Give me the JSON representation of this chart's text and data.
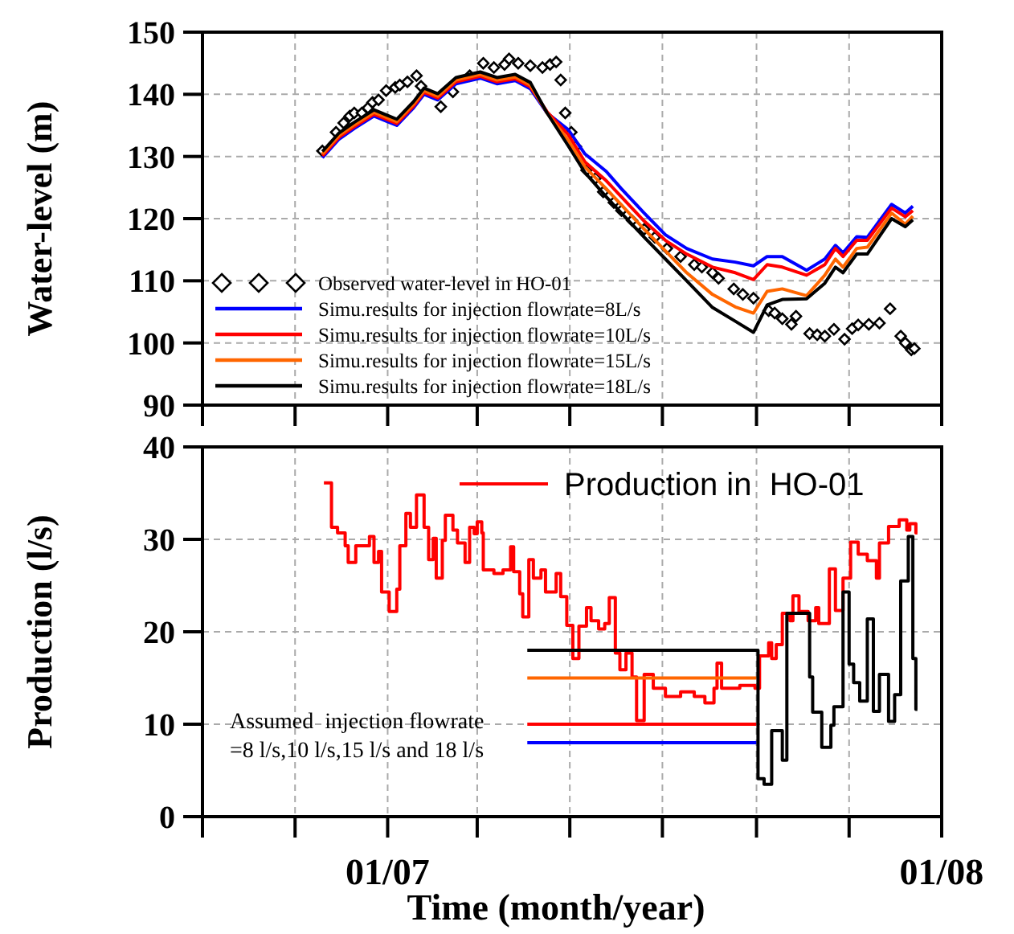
{
  "chart_data": [
    {
      "type": "line",
      "ylabel": "Water-level (m)",
      "xlim": [
        "2006-09-01",
        "2008-01-01"
      ],
      "xticks": [
        {
          "value": "2006-09-01",
          "label": null
        },
        {
          "value": "2006-11-01",
          "label": null
        },
        {
          "value": "2007-01-01",
          "label": null
        },
        {
          "value": "2007-03-01",
          "label": null
        },
        {
          "value": "2007-05-01",
          "label": null
        },
        {
          "value": "2007-07-01",
          "label": null
        },
        {
          "value": "2007-09-01",
          "label": null
        },
        {
          "value": "2007-11-01",
          "label": null
        },
        {
          "value": "2008-01-01",
          "label": null
        }
      ],
      "ylim": [
        90,
        150
      ],
      "yticks": [
        90,
        100,
        110,
        120,
        130,
        140,
        150
      ],
      "grid": true,
      "legend": "bottom left",
      "tick_labels": "y",
      "series": [
        {
          "name": "Observed water-level in HO-01",
          "type": "scatter",
          "marker": "diamond",
          "color": "#000000",
          "x": [
            "2006-11-19",
            "2006-11-28",
            "2006-12-03",
            "2006-12-07",
            "2006-12-10",
            "2006-12-15",
            "2006-12-19",
            "2006-12-22",
            "2006-12-26",
            "2006-12-31",
            "2007-01-06",
            "2007-01-09",
            "2007-01-14",
            "2007-01-20",
            "2007-01-23",
            "2007-02-05",
            "2007-02-13",
            "2007-02-24",
            "2007-03-05",
            "2007-03-12",
            "2007-03-19",
            "2007-03-22",
            "2007-03-28",
            "2007-04-05",
            "2007-04-13",
            "2007-04-18",
            "2007-04-22",
            "2007-04-25",
            "2007-04-28",
            "2007-05-02",
            "2007-05-05",
            "2007-05-12",
            "2007-05-18",
            "2007-05-23",
            "2007-05-30",
            "2007-06-04",
            "2007-06-11",
            "2007-06-19",
            "2007-06-26",
            "2007-07-04",
            "2007-07-13",
            "2007-07-22",
            "2007-07-27",
            "2007-08-03",
            "2007-08-07",
            "2007-08-17",
            "2007-08-23",
            "2007-08-30",
            "2007-09-09",
            "2007-09-13",
            "2007-09-18",
            "2007-09-24",
            "2007-09-27",
            "2007-10-06",
            "2007-10-11",
            "2007-10-16",
            "2007-10-22",
            "2007-10-29",
            "2007-11-03",
            "2007-11-07",
            "2007-11-14",
            "2007-11-21",
            "2007-11-28",
            "2007-12-05",
            "2007-12-08",
            "2007-12-12",
            "2007-12-14"
          ],
          "values": [
            130.9,
            133.9,
            135.4,
            136.5,
            137.0,
            137.0,
            137.8,
            138.7,
            139.1,
            140.6,
            141.1,
            141.5,
            142.0,
            143.0,
            141.3,
            138.0,
            140.4,
            143.0,
            145.0,
            144.3,
            144.8,
            145.7,
            145.0,
            144.6,
            144.3,
            144.8,
            145.2,
            142.3,
            137.0,
            133.9,
            131.6,
            127.8,
            126.5,
            124.3,
            122.6,
            121.3,
            119.7,
            118.3,
            117.0,
            115.2,
            113.9,
            112.6,
            112.2,
            111.3,
            110.4,
            108.7,
            107.8,
            107.2,
            105.2,
            104.8,
            103.9,
            103.0,
            104.3,
            101.5,
            101.3,
            101.1,
            102.2,
            100.6,
            102.3,
            102.9,
            103.0,
            103.2,
            105.5,
            101.1,
            100.0,
            98.9,
            99.1
          ]
        },
        {
          "name": "Simu.results for injection flowrate=8L/s",
          "color": "#0000ff",
          "x": [
            "2006-11-19",
            "2006-11-30",
            "2006-12-10",
            "2006-12-23",
            "2006-12-31",
            "2007-01-07",
            "2007-01-18",
            "2007-01-25",
            "2007-02-03",
            "2007-02-15",
            "2007-03-03",
            "2007-03-14",
            "2007-03-26",
            "2007-04-05",
            "2007-04-16",
            "2007-04-30",
            "2007-05-11",
            "2007-05-25",
            "2007-06-04",
            "2007-06-19",
            "2007-07-03",
            "2007-07-17",
            "2007-08-03",
            "2007-08-18",
            "2007-08-30",
            "2007-09-08",
            "2007-09-18",
            "2007-10-04",
            "2007-10-16",
            "2007-10-23",
            "2007-10-28",
            "2007-11-06",
            "2007-11-13",
            "2007-11-29",
            "2007-12-08",
            "2007-12-13"
          ],
          "values": [
            129.8,
            132.8,
            134.5,
            136.5,
            135.7,
            135.0,
            137.8,
            140.0,
            139.1,
            141.7,
            142.6,
            141.7,
            142.2,
            140.9,
            137.0,
            134.3,
            130.4,
            127.6,
            124.8,
            120.9,
            117.4,
            115.2,
            113.5,
            113.0,
            112.4,
            113.9,
            113.9,
            111.7,
            113.5,
            115.7,
            114.5,
            117.1,
            117.0,
            122.3,
            120.9,
            122.0
          ]
        },
        {
          "name": "Simu.results for injection flowrate=10L/s",
          "color": "#ff0000",
          "x": [
            "2006-11-19",
            "2006-11-30",
            "2006-12-10",
            "2006-12-23",
            "2006-12-31",
            "2007-01-07",
            "2007-01-18",
            "2007-01-25",
            "2007-02-03",
            "2007-02-15",
            "2007-03-03",
            "2007-03-14",
            "2007-03-26",
            "2007-04-05",
            "2007-04-16",
            "2007-04-30",
            "2007-05-11",
            "2007-05-25",
            "2007-06-04",
            "2007-06-19",
            "2007-07-03",
            "2007-07-17",
            "2007-08-03",
            "2007-08-18",
            "2007-08-30",
            "2007-09-08",
            "2007-09-18",
            "2007-10-04",
            "2007-10-16",
            "2007-10-23",
            "2007-10-28",
            "2007-11-06",
            "2007-11-13",
            "2007-11-29",
            "2007-12-08",
            "2007-12-13"
          ],
          "values": [
            130.1,
            133.1,
            134.8,
            136.8,
            136.0,
            135.3,
            138.1,
            140.3,
            139.4,
            142.0,
            142.9,
            142.0,
            142.5,
            141.2,
            137.2,
            133.5,
            129.1,
            126.1,
            123.5,
            119.6,
            116.5,
            114.3,
            112.2,
            111.3,
            110.2,
            112.6,
            112.2,
            110.9,
            112.6,
            115.2,
            113.9,
            116.5,
            116.5,
            121.7,
            120.3,
            121.3
          ]
        },
        {
          "name": "Simu.results for injection flowrate=15L/s",
          "color": "#ff6600",
          "x": [
            "2006-11-19",
            "2006-11-30",
            "2006-12-10",
            "2006-12-23",
            "2006-12-31",
            "2007-01-07",
            "2007-01-18",
            "2007-01-25",
            "2007-02-03",
            "2007-02-15",
            "2007-03-03",
            "2007-03-14",
            "2007-03-26",
            "2007-04-05",
            "2007-04-16",
            "2007-04-30",
            "2007-05-11",
            "2007-05-25",
            "2007-06-04",
            "2007-06-19",
            "2007-07-03",
            "2007-07-17",
            "2007-08-03",
            "2007-08-18",
            "2007-08-30",
            "2007-09-08",
            "2007-09-18",
            "2007-10-04",
            "2007-10-16",
            "2007-10-23",
            "2007-10-28",
            "2007-11-06",
            "2007-11-13",
            "2007-11-29",
            "2007-12-08",
            "2007-12-13"
          ],
          "values": [
            130.4,
            133.4,
            135.1,
            137.1,
            136.3,
            135.6,
            138.4,
            140.6,
            139.7,
            142.3,
            143.2,
            142.3,
            142.8,
            141.5,
            137.0,
            132.6,
            128.3,
            124.8,
            122.2,
            118.3,
            114.8,
            111.3,
            107.8,
            105.8,
            104.8,
            108.3,
            108.7,
            107.6,
            110.9,
            113.5,
            112.2,
            115.2,
            115.4,
            120.9,
            119.1,
            120.4
          ]
        },
        {
          "name": "Simu.results for injection flowrate=18L/s",
          "color": "#000000",
          "x": [
            "2006-11-19",
            "2006-11-30",
            "2006-12-10",
            "2006-12-23",
            "2006-12-31",
            "2007-01-07",
            "2007-01-18",
            "2007-01-25",
            "2007-02-03",
            "2007-02-15",
            "2007-03-03",
            "2007-03-14",
            "2007-03-26",
            "2007-04-05",
            "2007-04-16",
            "2007-04-30",
            "2007-05-11",
            "2007-05-25",
            "2007-06-04",
            "2007-06-19",
            "2007-07-03",
            "2007-07-17",
            "2007-08-03",
            "2007-08-18",
            "2007-08-30",
            "2007-09-08",
            "2007-09-18",
            "2007-10-04",
            "2007-10-16",
            "2007-10-23",
            "2007-10-28",
            "2007-11-06",
            "2007-11-13",
            "2007-11-29",
            "2007-12-08",
            "2007-12-13"
          ],
          "values": [
            130.8,
            133.8,
            135.5,
            137.5,
            136.7,
            136.0,
            138.8,
            141.0,
            140.1,
            142.7,
            143.6,
            142.7,
            143.2,
            141.9,
            137.0,
            131.7,
            127.4,
            123.5,
            120.9,
            117.0,
            113.5,
            110.0,
            105.7,
            103.5,
            101.7,
            106.1,
            107.0,
            107.1,
            109.6,
            112.2,
            111.3,
            114.3,
            114.3,
            120.0,
            118.7,
            119.8
          ]
        }
      ]
    },
    {
      "type": "step",
      "ylabel": "Production (l/s)",
      "xlabel": "Time (month/year)",
      "xlim": [
        "2006-09-01",
        "2008-01-01"
      ],
      "xticks": [
        {
          "value": "2006-09-01",
          "label": null
        },
        {
          "value": "2006-11-01",
          "label": null
        },
        {
          "value": "2007-01-01",
          "label": "01/07"
        },
        {
          "value": "2007-03-01",
          "label": null
        },
        {
          "value": "2007-05-01",
          "label": null
        },
        {
          "value": "2007-07-01",
          "label": null
        },
        {
          "value": "2007-09-01",
          "label": null
        },
        {
          "value": "2007-11-01",
          "label": null
        },
        {
          "value": "2008-01-01",
          "label": "01/08"
        }
      ],
      "ylim": [
        0,
        40
      ],
      "yticks": [
        0,
        10,
        20,
        30,
        40
      ],
      "grid": true,
      "legend": "top",
      "annotations": [
        "Assumed  injection flowrate\n=8 l/s,10 l/s,15 l/s and 18 l/s"
      ],
      "series": [
        {
          "name": "Production in  HO-01",
          "color": "#ff0000",
          "x": [
            "2006-11-20",
            "2006-11-25",
            "2006-11-29",
            "2006-12-04",
            "2006-12-06",
            "2006-12-11",
            "2006-12-20",
            "2006-12-23",
            "2006-12-26",
            "2006-12-28",
            "2007-01-02",
            "2007-01-07",
            "2007-01-09",
            "2007-01-13",
            "2007-01-16",
            "2007-01-20",
            "2007-01-25",
            "2007-01-28",
            "2007-01-31",
            "2007-02-02",
            "2007-02-06",
            "2007-02-08",
            "2007-02-13",
            "2007-02-16",
            "2007-02-21",
            "2007-02-24",
            "2007-02-27",
            "2007-03-01",
            "2007-03-04",
            "2007-03-05",
            "2007-03-12",
            "2007-03-18",
            "2007-03-23",
            "2007-03-25",
            "2007-03-29",
            "2007-03-31",
            "2007-04-04",
            "2007-04-07",
            "2007-04-12",
            "2007-04-15",
            "2007-04-22",
            "2007-04-25",
            "2007-04-29",
            "2007-05-03",
            "2007-05-07",
            "2007-05-12",
            "2007-05-15",
            "2007-05-20",
            "2007-05-24",
            "2007-05-27",
            "2007-05-31",
            "2007-06-03",
            "2007-06-07",
            "2007-06-11",
            "2007-06-14",
            "2007-06-19",
            "2007-06-25",
            "2007-07-03",
            "2007-07-13",
            "2007-07-22",
            "2007-07-29",
            "2007-08-04",
            "2007-08-06",
            "2007-08-09",
            "2007-08-21",
            "2007-08-31",
            "2007-09-03",
            "2007-09-07",
            "2007-09-09",
            "2007-09-11",
            "2007-09-14",
            "2007-09-18",
            "2007-09-23",
            "2007-09-25",
            "2007-09-29",
            "2007-10-05",
            "2007-10-10",
            "2007-10-12",
            "2007-10-19",
            "2007-10-23",
            "2007-10-28",
            "2007-11-02",
            "2007-11-07",
            "2007-11-13",
            "2007-11-19",
            "2007-11-21",
            "2007-11-27",
            "2007-12-04",
            "2007-12-09",
            "2007-12-11",
            "2007-12-15",
            "2007-12-16"
          ],
          "values": [
            36.1,
            31.3,
            30.7,
            29.3,
            27.5,
            29.3,
            30.3,
            27.5,
            28.7,
            24.3,
            22.2,
            24.6,
            29.3,
            32.8,
            31.3,
            34.8,
            31.3,
            27.8,
            30.1,
            25.8,
            29.9,
            32.6,
            31.0,
            29.6,
            27.5,
            31.3,
            30.6,
            31.9,
            30.7,
            26.7,
            26.3,
            26.7,
            29.2,
            26.5,
            24.1,
            21.6,
            27.8,
            25.8,
            26.7,
            24.3,
            26.3,
            23.8,
            20.7,
            17.1,
            20.6,
            22.6,
            21.2,
            20.3,
            20.9,
            23.7,
            17.7,
            15.9,
            17.7,
            15.1,
            10.4,
            15.4,
            13.9,
            13.0,
            13.5,
            13.0,
            12.3,
            13.9,
            16.6,
            13.9,
            14.2,
            13.9,
            17.4,
            17.4,
            18.8,
            17.1,
            18.6,
            22.0,
            21.2,
            23.9,
            22.2,
            21.2,
            22.6,
            20.9,
            26.8,
            22.3,
            25.8,
            29.7,
            28.4,
            27.7,
            25.8,
            29.6,
            31.4,
            32.1,
            31.0,
            31.7,
            30.7,
            30.7
          ]
        },
        {
          "type": "line",
          "color": "#ff6600",
          "x": [
            "2007-04-03",
            "2007-09-01"
          ],
          "values": [
            15,
            15
          ]
        },
        {
          "type": "line",
          "color": "#ff0000",
          "x": [
            "2007-04-03",
            "2007-09-01"
          ],
          "values": [
            10,
            10
          ]
        },
        {
          "type": "line",
          "color": "#0000ff",
          "x": [
            "2007-04-03",
            "2007-09-01"
          ],
          "values": [
            8,
            8
          ]
        },
        {
          "color": "#000000",
          "x": [
            "2007-04-03",
            "2007-09-02",
            "2007-09-06",
            "2007-09-11",
            "2007-09-18",
            "2007-09-21",
            "2007-10-06",
            "2007-10-08",
            "2007-10-14",
            "2007-10-20",
            "2007-10-22",
            "2007-10-28",
            "2007-11-01",
            "2007-11-04",
            "2007-11-08",
            "2007-11-13",
            "2007-11-17",
            "2007-11-21",
            "2007-11-27",
            "2007-12-01",
            "2007-12-05",
            "2007-12-10",
            "2007-12-13",
            "2007-12-15",
            "2007-12-16"
          ],
          "values": [
            18,
            4.1,
            3.5,
            9.3,
            6.1,
            22.0,
            15.1,
            11.3,
            7.5,
            9.9,
            11.9,
            24.3,
            16.5,
            14.5,
            12.5,
            21.4,
            11.4,
            15.4,
            10.3,
            13.2,
            25.5,
            30.3,
            17.1,
            11.6,
            11.6
          ]
        }
      ]
    }
  ]
}
